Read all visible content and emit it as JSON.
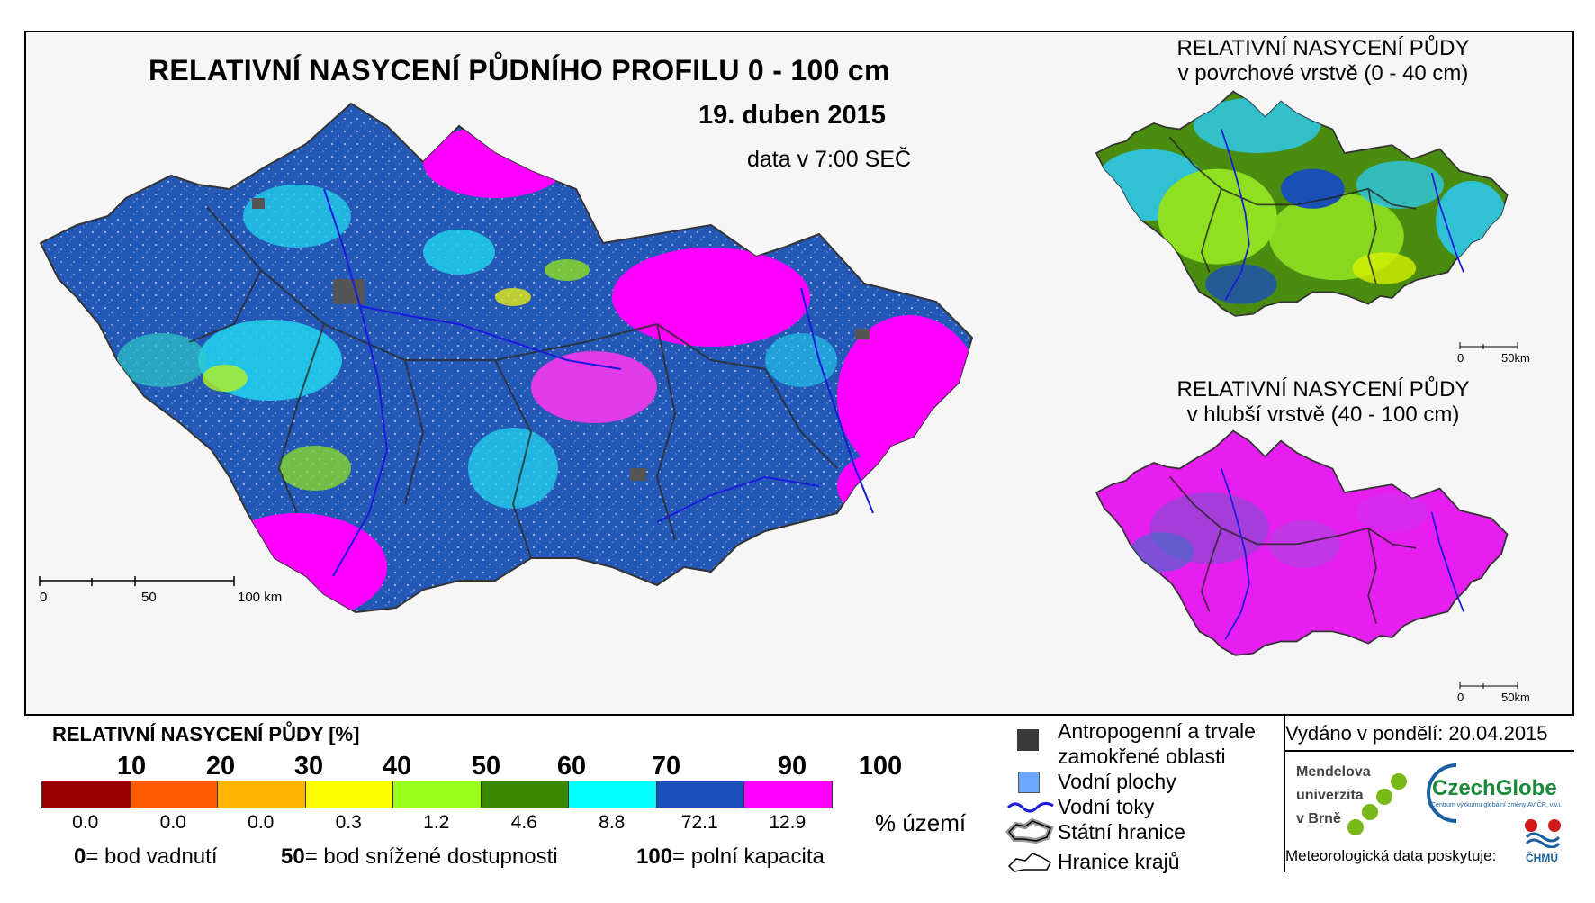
{
  "main": {
    "title": "RELATIVNÍ NASYCENÍ PŮDNÍHO PROFILU 0 - 100 cm",
    "date": "19. duben 2015",
    "time": "data v 7:00 SEČ",
    "scale": {
      "labels": [
        "0",
        "50",
        "100 km"
      ]
    }
  },
  "inset_top": {
    "title_line1": "RELATIVNÍ NASYCENÍ PŮDY",
    "title_line2": "v povrchové vrstvě (0 - 40 cm)",
    "scale": {
      "labels": [
        "0",
        "50km"
      ]
    },
    "dominant_colors": [
      "#2ec8e8",
      "#8ee020",
      "#4a8c10",
      "#1a4fb5"
    ]
  },
  "inset_bottom": {
    "title_line1": "RELATIVNÍ NASYCENÍ PŮDY",
    "title_line2": "v hlubší vrstvě (40 - 100 cm)",
    "scale": {
      "labels": [
        "0",
        "50km"
      ]
    },
    "dominant_colors": [
      "#e61ef0",
      "#7a3ac8",
      "#1a4fb5"
    ]
  },
  "main_map": {
    "dominant_colors": [
      "#1a4fb5",
      "#2ec8e8",
      "#e61ef0",
      "#8ee020",
      "#555555"
    ]
  },
  "legend": {
    "title": "RELATIVNÍ NASYCENÍ PŮDY [%]",
    "ticks": [
      "10",
      "20",
      "30",
      "40",
      "50",
      "60",
      "70",
      "90",
      "100"
    ],
    "classes": [
      {
        "color": "#9a0000",
        "pct": "0.0"
      },
      {
        "color": "#ff5a00",
        "pct": "0.0"
      },
      {
        "color": "#ffb400",
        "pct": "0.0"
      },
      {
        "color": "#ffff00",
        "pct": "0.3"
      },
      {
        "color": "#99ff1a",
        "pct": "1.2"
      },
      {
        "color": "#3a8a00",
        "pct": "4.6"
      },
      {
        "color": "#00ffff",
        "pct": "8.8"
      },
      {
        "color": "#1a50b8",
        "pct": "72.1"
      },
      {
        "color": "#ff00ff",
        "pct": "12.9"
      }
    ],
    "unit": "% území",
    "note": [
      {
        "num": "0",
        "text": "= bod vadnutí"
      },
      {
        "num": "50",
        "text": "= bod snížené dostupnosti"
      },
      {
        "num": "100",
        "text": "= polní kapacita"
      }
    ]
  },
  "symbols": {
    "items": [
      {
        "icon": "dark-square-icon",
        "label_line1": "Antropogenní a trvale",
        "label_line2": "zamokřené oblasti"
      },
      {
        "icon": "blue-square-icon",
        "label_line1": "Vodní plochy"
      },
      {
        "icon": "river-line-icon",
        "label_line1": "Vodní toky"
      },
      {
        "icon": "state-border-icon",
        "label_line1": "Státní hranice"
      },
      {
        "icon": "region-border-icon",
        "label_line1": "Hranice krajů"
      }
    ]
  },
  "credits": {
    "issued": "Vydáno v pondělí: 20.04.2015",
    "mendel_line1": "Mendelova",
    "mendel_line2": "univerzita",
    "mendel_line3": "v Brně",
    "czechglobe": "CzechGlobe",
    "czechglobe_sub": "Centrum výzkumu globální změny AV ČR, v.v.i.",
    "provider": "Meteorologická data poskytuje:",
    "chmu": "ČHMÚ"
  }
}
